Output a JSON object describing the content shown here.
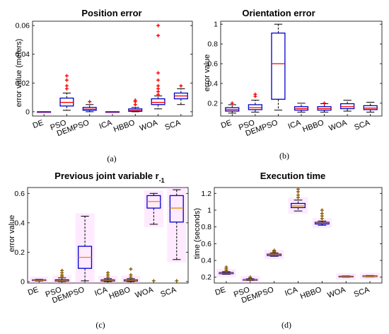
{
  "colors": {
    "box": "#0000cc",
    "median_red": "#ff0000",
    "median_orange": "#e09000",
    "whisker": "#000000",
    "outlier_red": "#ff0000",
    "outlier_olive": "#8a5a00",
    "halo": "#ff88ff"
  },
  "chart_data": [
    {
      "type": "box",
      "panel_label": "(a)",
      "title": "Position error",
      "title_sub": "",
      "ylabel": "error value (meters)",
      "ylim": [
        -0.003,
        0.063
      ],
      "yticks": [
        0,
        0.02,
        0.04,
        0.06
      ],
      "ytick_labels": [
        "0",
        "0.02",
        "0.04",
        "0.06"
      ],
      "categories": [
        "DE",
        "PSO",
        "DEMPSO",
        "ICA",
        "HBBO",
        "WOA",
        "SCA"
      ],
      "median_color": "red",
      "outlier_style": "plus-red",
      "boxes": [
        {
          "min": 0,
          "q1": 0,
          "median": 0,
          "q3": 0,
          "max": 0,
          "outliers": []
        },
        {
          "min": 0.001,
          "q1": 0.004,
          "median": 0.0065,
          "q3": 0.0095,
          "max": 0.013,
          "outliers": [
            0.016,
            0.018,
            0.022,
            0.025
          ]
        },
        {
          "min": 0,
          "q1": 0.001,
          "median": 0.0018,
          "q3": 0.003,
          "max": 0.005,
          "outliers": [
            0.007
          ]
        },
        {
          "min": 0,
          "q1": 0,
          "median": 0,
          "q3": 0,
          "max": 0,
          "outliers": []
        },
        {
          "min": 0,
          "q1": 0.0003,
          "median": 0.001,
          "q3": 0.002,
          "max": 0.003,
          "outliers": [
            0.005,
            0.007,
            0.008
          ]
        },
        {
          "min": 0.002,
          "q1": 0.005,
          "median": 0.0065,
          "q3": 0.009,
          "max": 0.011,
          "outliers": [
            0.012,
            0.014,
            0.016,
            0.018,
            0.022,
            0.027,
            0.053,
            0.06
          ]
        },
        {
          "min": 0.005,
          "q1": 0.009,
          "median": 0.011,
          "q3": 0.013,
          "max": 0.016,
          "outliers": [
            0.018
          ]
        }
      ]
    },
    {
      "type": "box",
      "panel_label": "(b)",
      "title": "Orientation error",
      "title_sub": "",
      "ylabel": "error value",
      "ylim": [
        0.07,
        1.03
      ],
      "yticks": [
        0.2,
        0.4,
        0.6,
        0.8,
        1
      ],
      "ytick_labels": [
        "0.2",
        "0.4",
        "0.6",
        "0.8",
        "1"
      ],
      "categories": [
        "DE",
        "PSO",
        "DEMPSO",
        "ICA",
        "HBBO",
        "WOA",
        "SCA"
      ],
      "median_color": "red",
      "outlier_style": "plus-red",
      "boxes": [
        {
          "min": 0.1,
          "q1": 0.12,
          "median": 0.135,
          "q3": 0.155,
          "max": 0.185,
          "outliers": [
            0.2
          ]
        },
        {
          "min": 0.11,
          "q1": 0.135,
          "median": 0.155,
          "q3": 0.185,
          "max": 0.23,
          "outliers": [
            0.27,
            0.29
          ]
        },
        {
          "min": 0.13,
          "q1": 0.24,
          "median": 0.6,
          "q3": 0.91,
          "max": 1.0,
          "outliers": []
        },
        {
          "min": 0.11,
          "q1": 0.13,
          "median": 0.145,
          "q3": 0.165,
          "max": 0.2,
          "outliers": []
        },
        {
          "min": 0.11,
          "q1": 0.13,
          "median": 0.145,
          "q3": 0.165,
          "max": 0.195,
          "outliers": [
            0.2
          ]
        },
        {
          "min": 0.12,
          "q1": 0.145,
          "median": 0.165,
          "q3": 0.195,
          "max": 0.23,
          "outliers": []
        },
        {
          "min": 0.11,
          "q1": 0.135,
          "median": 0.15,
          "q3": 0.175,
          "max": 0.21,
          "outliers": []
        }
      ]
    },
    {
      "type": "box",
      "panel_label": "(c)",
      "title": "Previous joint variable r",
      "title_sub": "-1",
      "ylabel": "error value",
      "ylim": [
        -0.01,
        0.64
      ],
      "yticks": [
        0,
        0.2,
        0.4,
        0.6
      ],
      "ytick_labels": [
        "0",
        "0.2",
        "0.4",
        "0.6"
      ],
      "categories": [
        "DE",
        "PSO",
        "DEMPSO",
        "ICA",
        "HBBO",
        "WOA",
        "SCA"
      ],
      "median_color": "orange",
      "outlier_style": "plus-olive",
      "boxes": [
        {
          "min": 0.004,
          "q1": 0.007,
          "median": 0.009,
          "q3": 0.012,
          "max": 0.015,
          "outliers": []
        },
        {
          "min": 0,
          "q1": 0.003,
          "median": 0.006,
          "q3": 0.012,
          "max": 0.025,
          "outliers": [
            0.035,
            0.045,
            0.06,
            0.075
          ]
        },
        {
          "min": 0.005,
          "q1": 0.09,
          "median": 0.165,
          "q3": 0.24,
          "max": 0.445,
          "outliers": []
        },
        {
          "min": 0,
          "q1": 0.004,
          "median": 0.008,
          "q3": 0.012,
          "max": 0.02,
          "outliers": [
            0.03,
            0.045,
            0.06
          ]
        },
        {
          "min": 0,
          "q1": 0.004,
          "median": 0.008,
          "q3": 0.012,
          "max": 0.02,
          "outliers": [
            0.03,
            0.045,
            0.085
          ]
        },
        {
          "min": 0.39,
          "q1": 0.5,
          "median": 0.545,
          "q3": 0.585,
          "max": 0.6,
          "outliers": [
            0.005
          ]
        },
        {
          "min": 0.15,
          "q1": 0.405,
          "median": 0.5,
          "q3": 0.585,
          "max": 0.625,
          "outliers": [
            0.005
          ]
        }
      ]
    },
    {
      "type": "box",
      "panel_label": "(d)",
      "title": "Execution time",
      "title_sub": "",
      "ylabel": "time (seconds)",
      "ylim": [
        0.13,
        1.27
      ],
      "yticks": [
        0.2,
        0.4,
        0.6,
        0.8,
        1,
        1.2
      ],
      "ytick_labels": [
        "0.2",
        "0.4",
        "0.6",
        "0.8",
        "1",
        "1.2"
      ],
      "categories": [
        "DE",
        "PSO",
        "DEMPSO",
        "ICA",
        "HBBO",
        "WOA",
        "SCA"
      ],
      "median_color": "orange",
      "outlier_style": "plus-olive",
      "boxes": [
        {
          "min": 0.235,
          "q1": 0.242,
          "median": 0.248,
          "q3": 0.255,
          "max": 0.265,
          "outliers": [
            0.28,
            0.3,
            0.32
          ]
        },
        {
          "min": 0.16,
          "q1": 0.163,
          "median": 0.167,
          "q3": 0.172,
          "max": 0.18,
          "outliers": [
            0.19,
            0.2
          ]
        },
        {
          "min": 0.45,
          "q1": 0.458,
          "median": 0.465,
          "q3": 0.475,
          "max": 0.49,
          "outliers": [
            0.5,
            0.51,
            0.52
          ]
        },
        {
          "min": 0.99,
          "q1": 1.03,
          "median": 1.05,
          "q3": 1.08,
          "max": 1.12,
          "outliers": [
            1.15,
            1.18,
            1.22,
            1.25
          ]
        },
        {
          "min": 0.82,
          "q1": 0.835,
          "median": 0.845,
          "q3": 0.855,
          "max": 0.87,
          "outliers": [
            0.9,
            0.93,
            0.96,
            1.0
          ]
        },
        {
          "min": 0.2,
          "q1": 0.203,
          "median": 0.207,
          "q3": 0.211,
          "max": 0.215,
          "outliers": []
        },
        {
          "min": 0.205,
          "q1": 0.208,
          "median": 0.212,
          "q3": 0.216,
          "max": 0.22,
          "outliers": []
        }
      ]
    }
  ]
}
